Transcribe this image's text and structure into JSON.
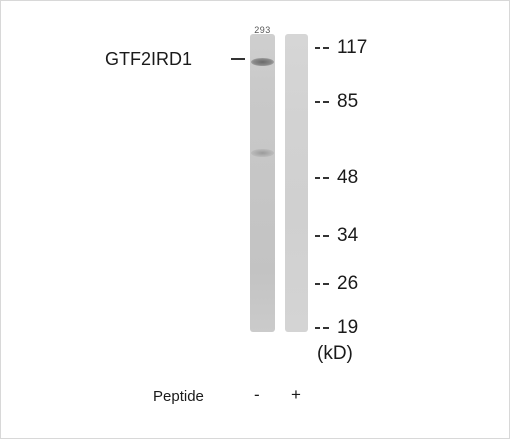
{
  "blot": {
    "lane_label": "293",
    "protein_label": "GTF2IRD1",
    "markers": [
      "117",
      "85",
      "48",
      "34",
      "26",
      "19"
    ],
    "unit": "(kD)",
    "peptide_label": "Peptide",
    "lane_signs": [
      "-",
      "+"
    ]
  }
}
